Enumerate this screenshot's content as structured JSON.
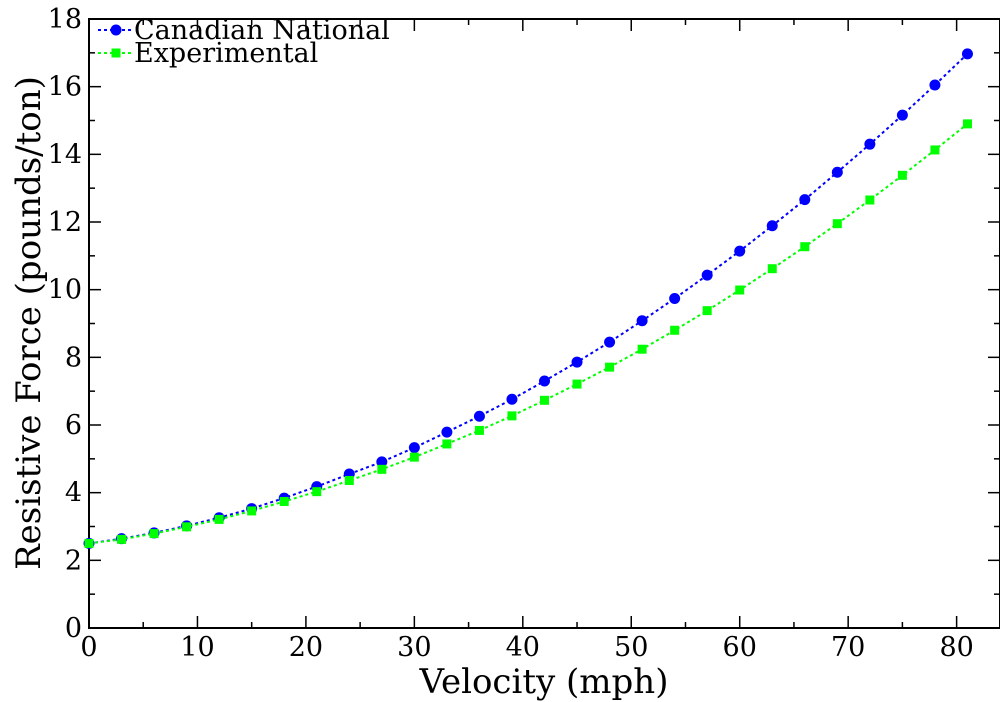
{
  "chart_data": {
    "type": "line",
    "xlabel": "Velocity (mph)",
    "ylabel": "Resistive Force (pounds/ton)",
    "xlim": [
      0,
      84
    ],
    "ylim": [
      0,
      18
    ],
    "x_ticks": [
      0,
      10,
      20,
      30,
      40,
      50,
      60,
      70,
      80
    ],
    "y_ticks": [
      0,
      2,
      4,
      6,
      8,
      10,
      12,
      14,
      16,
      18
    ],
    "x_tick_labels": [
      "0",
      "10",
      "20",
      "30",
      "40",
      "50",
      "60",
      "70",
      "80"
    ],
    "y_tick_labels": [
      "0",
      "2",
      "4",
      "6",
      "8",
      "10",
      "12",
      "14",
      "16",
      "18"
    ],
    "grid": false,
    "legend_position": "top-left",
    "x": [
      0,
      3,
      6,
      9,
      12,
      15,
      18,
      21,
      24,
      27,
      30,
      33,
      36,
      39,
      42,
      45,
      48,
      51,
      54,
      57,
      60,
      63,
      66,
      69,
      72,
      75,
      78,
      81
    ],
    "series": [
      {
        "name": "Canadian National",
        "color": "#0000ff",
        "marker": "circle",
        "line_style": "dotted",
        "values": [
          2.5,
          2.64,
          2.81,
          3.02,
          3.26,
          3.53,
          3.84,
          4.18,
          4.55,
          4.91,
          5.33,
          5.79,
          6.26,
          6.76,
          7.3,
          7.86,
          8.45,
          9.08,
          9.74,
          10.43,
          11.14,
          11.89,
          12.66,
          13.47,
          14.3,
          15.16,
          16.05,
          16.97
        ]
      },
      {
        "name": "Experimental",
        "color": "#00ff00",
        "marker": "square",
        "line_style": "dotted",
        "values": [
          2.5,
          2.62,
          2.79,
          2.99,
          3.21,
          3.46,
          3.74,
          4.03,
          4.36,
          4.69,
          5.05,
          5.44,
          5.84,
          6.27,
          6.73,
          7.21,
          7.71,
          8.24,
          8.8,
          9.38,
          9.99,
          10.62,
          11.27,
          11.95,
          12.65,
          13.38,
          14.13,
          14.9
        ]
      }
    ]
  }
}
